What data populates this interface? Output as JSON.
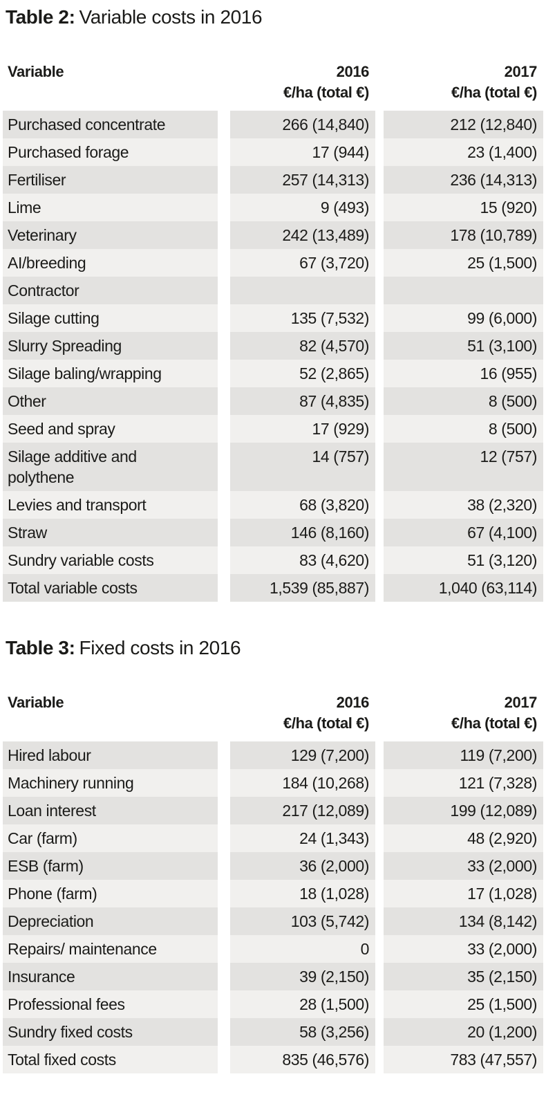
{
  "colors": {
    "page_background": "#ffffff",
    "row_dark": "#e3e2e0",
    "row_light": "#f1f0ee",
    "text": "#1b1b19"
  },
  "tables": [
    {
      "title_bold": "Table 2:",
      "title_rest": "Variable costs in 2016",
      "header": {
        "variable": "Variable",
        "col1_year": "2016",
        "col1_unit": "€/ha (total €)",
        "col2_year": "2017",
        "col2_unit": "€/ha (total €)"
      },
      "rows": [
        {
          "label": "Purchased concentrate",
          "v2016": "266 (14,840)",
          "v2017": "212 (12,840)"
        },
        {
          "label": "Purchased forage",
          "v2016": "17 (944)",
          "v2017": "23 (1,400)"
        },
        {
          "label": "Fertiliser",
          "v2016": "257 (14,313)",
          "v2017": "236 (14,313)"
        },
        {
          "label": "Lime",
          "v2016": "9 (493)",
          "v2017": "15 (920)"
        },
        {
          "label": "Veterinary",
          "v2016": "242 (13,489)",
          "v2017": "178 (10,789)"
        },
        {
          "label": "AI/breeding",
          "v2016": "67 (3,720)",
          "v2017": "25 (1,500)"
        },
        {
          "label": "Contractor",
          "v2016": "",
          "v2017": ""
        },
        {
          "label": "Silage cutting",
          "v2016": "135 (7,532)",
          "v2017": "99 (6,000)"
        },
        {
          "label": "Slurry Spreading",
          "v2016": "82 (4,570)",
          "v2017": "51 (3,100)"
        },
        {
          "label": "Silage baling/wrapping",
          "v2016": "52 (2,865)",
          "v2017": "16 (955)"
        },
        {
          "label": "Other",
          "v2016": "87 (4,835)",
          "v2017": "8 (500)"
        },
        {
          "label": "Seed and spray",
          "v2016": "17 (929)",
          "v2017": "8 (500)"
        },
        {
          "label": "Silage additive and\npolythene",
          "v2016": "14 (757)",
          "v2017": "12 (757)"
        },
        {
          "label": "Levies and transport",
          "v2016": "68 (3,820)",
          "v2017": "38 (2,320)"
        },
        {
          "label": "Straw",
          "v2016": "146 (8,160)",
          "v2017": "67 (4,100)"
        },
        {
          "label": "Sundry variable costs",
          "v2016": "83 (4,620)",
          "v2017": "51 (3,120)"
        },
        {
          "label": "Total variable costs",
          "v2016": "1,539 (85,887)",
          "v2017": "1,040 (63,114)"
        }
      ]
    },
    {
      "title_bold": "Table 3:",
      "title_rest": "Fixed costs in 2016",
      "header": {
        "variable": "Variable",
        "col1_year": "2016",
        "col1_unit": "€/ha (total €)",
        "col2_year": "2017",
        "col2_unit": "€/ha (total €)"
      },
      "rows": [
        {
          "label": "Hired labour",
          "v2016": "129 (7,200)",
          "v2017": "119 (7,200)"
        },
        {
          "label": "Machinery running",
          "v2016": "184 (10,268)",
          "v2017": "121 (7,328)"
        },
        {
          "label": "Loan interest",
          "v2016": "217 (12,089)",
          "v2017": "199 (12,089)"
        },
        {
          "label": "Car (farm)",
          "v2016": "24 (1,343)",
          "v2017": "48 (2,920)"
        },
        {
          "label": "ESB (farm)",
          "v2016": "36 (2,000)",
          "v2017": "33 (2,000)"
        },
        {
          "label": "Phone (farm)",
          "v2016": "18 (1,028)",
          "v2017": "17 (1,028)"
        },
        {
          "label": "Depreciation",
          "v2016": "103 (5,742)",
          "v2017": "134 (8,142)"
        },
        {
          "label": "Repairs/ maintenance",
          "v2016": "0",
          "v2017": "33 (2,000)"
        },
        {
          "label": "Insurance",
          "v2016": "39 (2,150)",
          "v2017": "35 (2,150)"
        },
        {
          "label": "Professional fees",
          "v2016": "28 (1,500)",
          "v2017": "25 (1,500)"
        },
        {
          "label": "Sundry fixed costs",
          "v2016": "58 (3,256)",
          "v2017": "20 (1,200)"
        },
        {
          "label": "Total fixed costs",
          "v2016": "835 (46,576)",
          "v2017": "783 (47,557)"
        }
      ]
    }
  ]
}
